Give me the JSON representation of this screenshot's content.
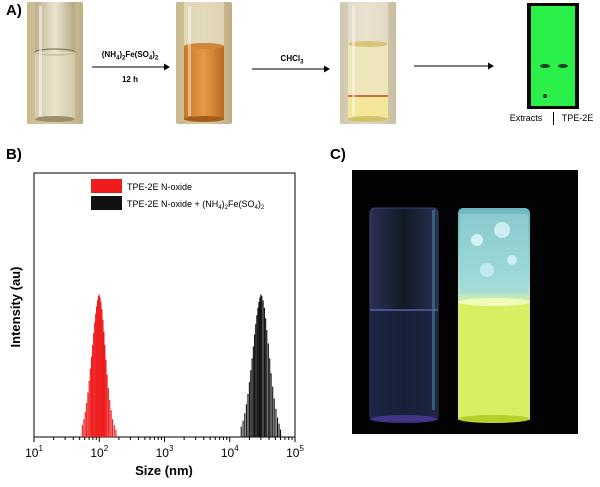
{
  "panel_a": {
    "label": "A)",
    "step1_reagent_main": "(NH",
    "step1_reagent_sub1": "4",
    "step1_reagent_mid": ")",
    "step1_reagent_sub2": "2",
    "step1_reagent_fe": "Fe(SO",
    "step1_reagent_sub3": "4",
    "step1_reagent_end": ")",
    "step1_reagent_sub4": "2",
    "step1_time": "12 h",
    "step2_solvent_main": "CHCl",
    "step2_solvent_sub": "3",
    "tlc_left_label": "Extracts",
    "tlc_right_label": "TPE-2E"
  },
  "panel_b": {
    "label": "B)",
    "colors": {
      "red": "#ee1c1c",
      "black": "#111111"
    }
  },
  "panel_c": {
    "label": "C)"
  },
  "chart_data": {
    "type": "bar",
    "xlabel": "Size (nm)",
    "ylabel": "Intensity (au)",
    "xscale": "log",
    "xlim": [
      10,
      100000
    ],
    "x_ticks": [
      {
        "base": "10",
        "exp": "1",
        "value": 10
      },
      {
        "base": "10",
        "exp": "2",
        "value": 100
      },
      {
        "base": "10",
        "exp": "3",
        "value": 1000
      },
      {
        "base": "10",
        "exp": "4",
        "value": 10000
      },
      {
        "base": "10",
        "exp": "5",
        "value": 100000
      }
    ],
    "ylim": [
      0,
      1
    ],
    "legend_placement": "top-center",
    "series": [
      {
        "name": "TPE-2E N-oxide",
        "legend_extra": "",
        "color": "#ee1c1c",
        "x": [
          55,
          58,
          61,
          64,
          67,
          70,
          73,
          76,
          79,
          82,
          85,
          88,
          91,
          94,
          97,
          100,
          103,
          106,
          110,
          114,
          118,
          122,
          127,
          132,
          138,
          145,
          152,
          160,
          170,
          180
        ],
        "values": [
          0.08,
          0.12,
          0.17,
          0.23,
          0.3,
          0.38,
          0.46,
          0.54,
          0.62,
          0.7,
          0.77,
          0.83,
          0.88,
          0.92,
          0.95,
          0.96,
          0.94,
          0.91,
          0.86,
          0.79,
          0.71,
          0.62,
          0.52,
          0.42,
          0.33,
          0.25,
          0.18,
          0.12,
          0.08,
          0.05
        ]
      },
      {
        "name": "TPE-2E N-oxide + (NH",
        "legend_extra": "4)2Fe(SO4)2",
        "color": "#111111",
        "x": [
          15000,
          16000,
          17000,
          18000,
          19000,
          20000,
          21000,
          22000,
          23000,
          24000,
          25000,
          26000,
          27000,
          28000,
          29000,
          30000,
          31000,
          32500,
          34000,
          35500,
          37000,
          39000,
          41000,
          43000,
          45500,
          48000,
          51000,
          54000,
          57000,
          60000
        ],
        "values": [
          0.07,
          0.11,
          0.16,
          0.22,
          0.29,
          0.37,
          0.45,
          0.53,
          0.61,
          0.69,
          0.76,
          0.82,
          0.87,
          0.91,
          0.94,
          0.96,
          0.95,
          0.92,
          0.87,
          0.8,
          0.72,
          0.63,
          0.53,
          0.43,
          0.34,
          0.26,
          0.19,
          0.13,
          0.09,
          0.05
        ]
      }
    ]
  }
}
